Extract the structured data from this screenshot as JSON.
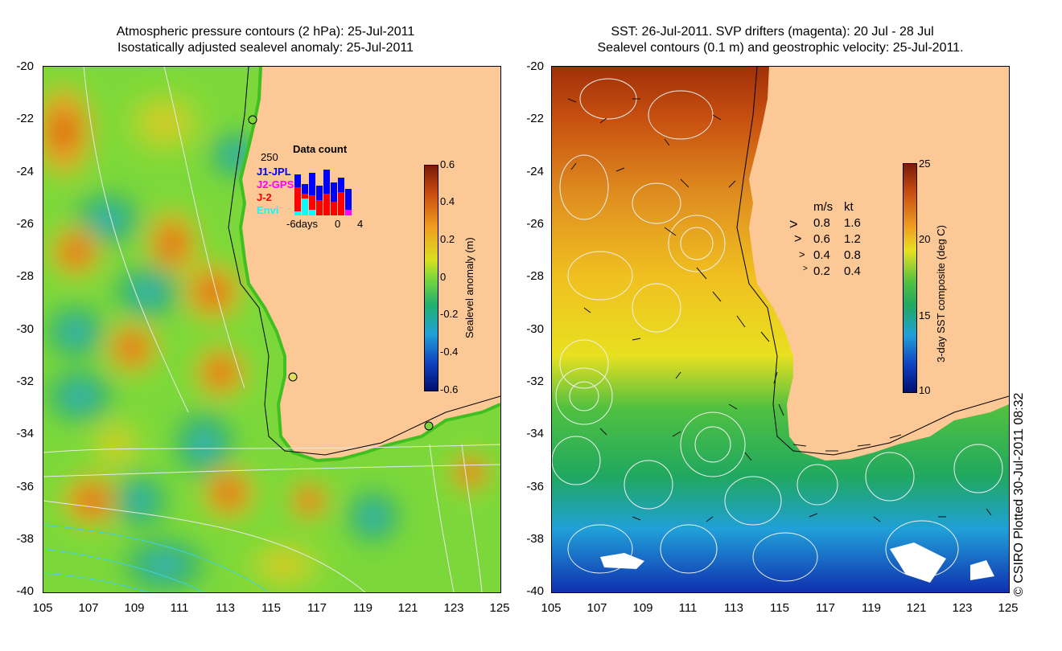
{
  "left_panel": {
    "title_line1": "Atmospheric pressure contours (2 hPa): 25-Jul-2011",
    "title_line2": "Isostatically adjusted sealevel anomaly: 25-Jul-2011",
    "colorbar": {
      "label": "Sealevel anomaly (m)",
      "ticks": [
        "0.6",
        "0.4",
        "0.2",
        "0",
        "-0.2",
        "-0.4",
        "-0.6"
      ]
    },
    "data_count": {
      "title": "Data count",
      "ymax_label": "250",
      "x_labels": [
        "-6days",
        "0",
        "4"
      ],
      "series": [
        {
          "name": "J1-JPL",
          "color": "#0000ff"
        },
        {
          "name": "J2-GPS",
          "color": "#ff00ff"
        },
        {
          "name": "J-2",
          "color": "#ff0000"
        },
        {
          "name": "Envi",
          "color": "#00ffff"
        }
      ]
    }
  },
  "right_panel": {
    "title_line1": "SST: 26-Jul-2011. SVP drifters (magenta): 20 Jul - 28 Jul",
    "title_line2": "Sealevel contours (0.1 m) and geostrophic velocity: 25-Jul-2011.",
    "colorbar": {
      "label": "3-day SST composite (deg C)",
      "ticks": [
        "25",
        "20",
        "15",
        "10"
      ]
    },
    "speed_legend": {
      "header_ms": "m/s",
      "header_kt": "kt",
      "rows": [
        {
          "ms": "0.8",
          "kt": "1.6"
        },
        {
          "ms": "0.6",
          "kt": "1.2"
        },
        {
          "ms": "0.4",
          "kt": "0.8"
        },
        {
          "ms": "0.2",
          "kt": "0.4"
        }
      ]
    }
  },
  "axes": {
    "y_labels": [
      "-20",
      "-22",
      "-24",
      "-26",
      "-28",
      "-30",
      "-32",
      "-34",
      "-36",
      "-38",
      "-40"
    ],
    "x_labels": [
      "105",
      "107",
      "109",
      "111",
      "113",
      "115",
      "117",
      "119",
      "121",
      "123",
      "125"
    ]
  },
  "credit": "© CSIRO Plotted 30-Jul-2011 08:32",
  "colors": {
    "land": "#fbc896",
    "sla_ocean": "#6cd24a",
    "sst_ocean": "#e0a010"
  }
}
